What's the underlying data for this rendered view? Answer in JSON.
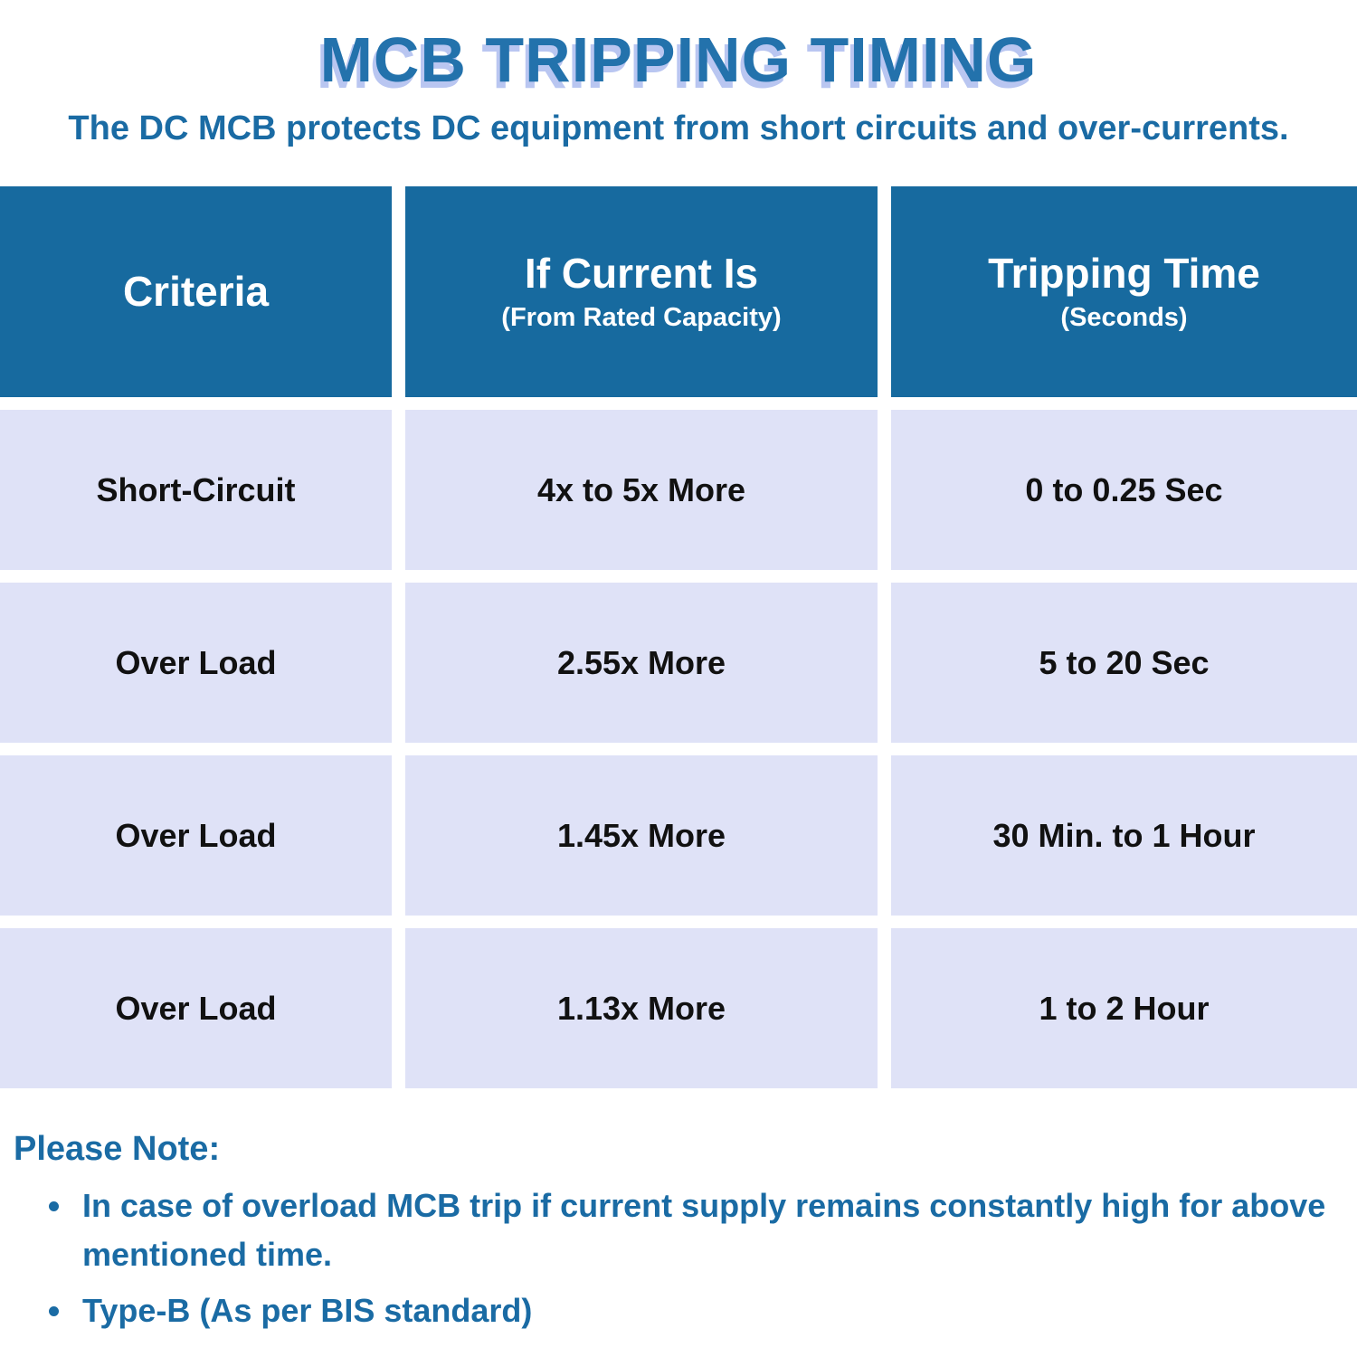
{
  "title": "MCB TRIPPING TIMING",
  "subtitle": "The DC MCB protects DC equipment from short circuits and over-currents.",
  "table": {
    "headers": [
      {
        "label": "Criteria"
      },
      {
        "label": "If Current Is",
        "sublabel": "(From Rated Capacity)"
      },
      {
        "label": "Tripping Time",
        "sublabel": "(Seconds)"
      }
    ],
    "rows": [
      {
        "criteria": "Short-Circuit",
        "current": "4x to 5x More",
        "time": "0 to 0.25 Sec"
      },
      {
        "criteria": "Over Load",
        "current": "2.55x More",
        "time": "5 to 20 Sec"
      },
      {
        "criteria": "Over Load",
        "current": "1.45x More",
        "time": "30 Min. to 1 Hour"
      },
      {
        "criteria": "Over Load",
        "current": "1.13x More",
        "time": "1 to 2 Hour"
      }
    ]
  },
  "note": {
    "heading": "Please Note:",
    "bullets": [
      "In case of overload MCB trip if current supply remains constantly high for above mentioned time.",
      "Type-B (As per BIS standard)"
    ]
  },
  "colors": {
    "header_bg": "#176A9F",
    "row_bg": "#DFE2F7",
    "title_text": "#2372AC",
    "title_shadow": "#B9C6F1",
    "body_text": "#1A6BA4",
    "cell_text": "#111111",
    "header_text": "#FFFFFF",
    "background": "#FFFFFF"
  }
}
